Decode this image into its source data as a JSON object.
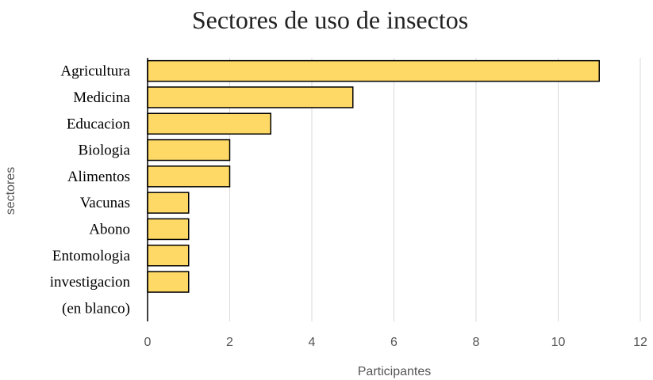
{
  "chart_data": {
    "type": "bar",
    "orientation": "horizontal",
    "title": "Sectores de uso de insectos",
    "xlabel": "Participantes",
    "ylabel": "sectores",
    "categories": [
      "Agricultura",
      "Medicina",
      "Educacion",
      "Biologia",
      "Alimentos",
      "Vacunas",
      "Abono",
      "Entomologia",
      "investigacion",
      "(en blanco)"
    ],
    "values": [
      11,
      5,
      3,
      2,
      2,
      1,
      1,
      1,
      1,
      0
    ],
    "xlim": [
      0,
      12
    ],
    "xticks": [
      0,
      2,
      4,
      6,
      8,
      10,
      12
    ],
    "grid": true,
    "legend": "none",
    "colors": {
      "bar": "#FFD966",
      "bar_edge": "#000000",
      "grid": "#D9D9D9"
    }
  }
}
